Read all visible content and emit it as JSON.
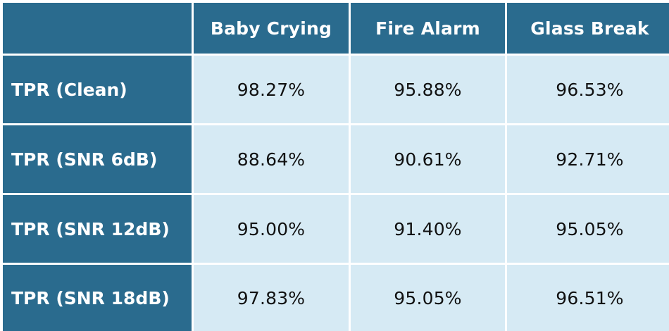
{
  "colors": {
    "header_bg": "#2a6b8e",
    "cell_bg": "#d6eaf4",
    "header_text": "#ffffff",
    "cell_text": "#111111"
  },
  "chart_data": {
    "type": "table",
    "columns": [
      "Baby Crying",
      "Fire Alarm",
      "Glass Break"
    ],
    "rows": [
      {
        "label": "TPR (Clean)",
        "values": [
          "98.27%",
          "95.88%",
          "96.53%"
        ]
      },
      {
        "label": "TPR (SNR 6dB)",
        "values": [
          "88.64%",
          "90.61%",
          "92.71%"
        ]
      },
      {
        "label": "TPR (SNR 12dB)",
        "values": [
          "95.00%",
          "91.40%",
          "95.05%"
        ]
      },
      {
        "label": "TPR (SNR 18dB)",
        "values": [
          "97.83%",
          "95.05%",
          "96.51%"
        ]
      }
    ]
  }
}
